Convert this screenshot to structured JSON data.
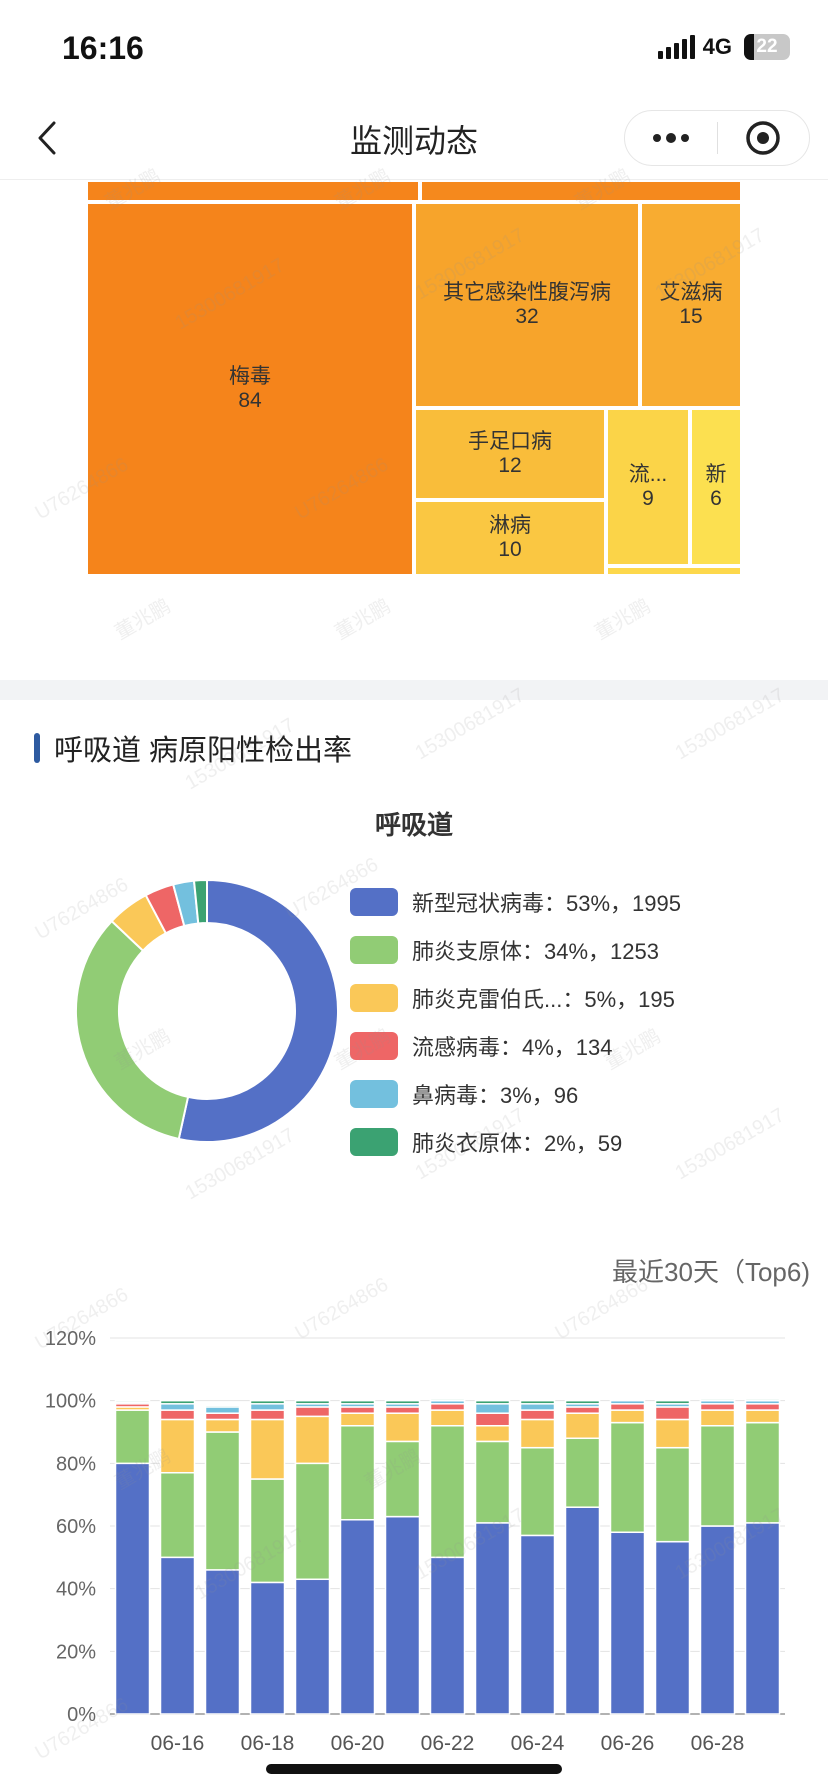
{
  "status_bar": {
    "time": "16:16",
    "network": "4G",
    "battery": "22"
  },
  "nav": {
    "title": "监测动态",
    "back_icon": "chevron-left-icon",
    "more_icon": "more-dots-icon",
    "target_icon": "record-target-icon"
  },
  "treemap": {
    "cells": [
      {
        "key": "top_left",
        "label": "",
        "value": "",
        "color": "#f5841b"
      },
      {
        "key": "top_right",
        "label": "",
        "value": "",
        "color": "#f5891d"
      },
      {
        "key": "syphilis",
        "label": "梅毒",
        "value": "84",
        "color": "#f5841b"
      },
      {
        "key": "diarrhea",
        "label": "其它感染性腹泻病",
        "value": "32",
        "color": "#f7a42b"
      },
      {
        "key": "aids",
        "label": "艾滋病",
        "value": "15",
        "color": "#f8ac31"
      },
      {
        "key": "hfmd",
        "label": "手足口病",
        "value": "12",
        "color": "#f9bd3a"
      },
      {
        "key": "gonorrhea",
        "label": "淋病",
        "value": "10",
        "color": "#fac742"
      },
      {
        "key": "flu",
        "label": "流...",
        "value": "9",
        "color": "#fbd448"
      },
      {
        "key": "new",
        "label": "新",
        "value": "6",
        "color": "#fce050"
      },
      {
        "key": "tiny",
        "label": "",
        "value": "",
        "color": "#fdd84c"
      }
    ]
  },
  "respiratory": {
    "section_title": "呼吸道 病原阳性检出率",
    "donut_title": "呼吸道",
    "legend": [
      {
        "label": "新型冠状病毒：53%，1995",
        "percent": 53,
        "count": 1995,
        "color": "#5470c6"
      },
      {
        "label": "肺炎支原体：34%，1253",
        "percent": 34,
        "count": 1253,
        "color": "#91cc75"
      },
      {
        "label": "肺炎克雷伯氏...：5%，195",
        "percent": 5,
        "count": 195,
        "color": "#fac858"
      },
      {
        "label": "流感病毒：4%，134",
        "percent": 4,
        "count": 134,
        "color": "#ee6666"
      },
      {
        "label": "鼻病毒：3%，96",
        "percent": 3,
        "count": 96,
        "color": "#73c0de"
      },
      {
        "label": "肺炎衣原体：2%，59",
        "percent": 2,
        "count": 59,
        "color": "#3ba272"
      }
    ]
  },
  "period_label": "最近30天（Top6)",
  "chart_data": {
    "type": "bar",
    "stacked": true,
    "ylim": [
      0,
      120
    ],
    "yticks": [
      "0%",
      "20%",
      "40%",
      "60%",
      "80%",
      "100%",
      "120%"
    ],
    "xtick_labels": [
      "06-16",
      "06-18",
      "06-20",
      "06-22",
      "06-24",
      "06-26",
      "06-28"
    ],
    "categories": [
      "06-15",
      "06-16",
      "06-17",
      "06-18",
      "06-19",
      "06-20",
      "06-21",
      "06-22",
      "06-23",
      "06-24",
      "06-25",
      "06-26",
      "06-27",
      "06-28",
      "06-29"
    ],
    "series": [
      {
        "color": "#5470c6",
        "values": [
          80,
          50,
          46,
          42,
          43,
          62,
          63,
          50,
          61,
          57,
          66,
          58,
          55,
          60,
          61
        ]
      },
      {
        "color": "#91cc75",
        "values": [
          17,
          27,
          44,
          33,
          37,
          30,
          24,
          42,
          26,
          28,
          22,
          35,
          30,
          32,
          32
        ]
      },
      {
        "color": "#fac858",
        "values": [
          1,
          17,
          4,
          19,
          15,
          4,
          9,
          5,
          5,
          9,
          8,
          4,
          9,
          5,
          4
        ]
      },
      {
        "color": "#ee6666",
        "values": [
          1,
          3,
          2,
          3,
          3,
          2,
          2,
          2,
          4,
          3,
          2,
          2,
          4,
          2,
          2
        ]
      },
      {
        "color": "#73c0de",
        "values": [
          0.5,
          2,
          2,
          2,
          1,
          1,
          1,
          1,
          3,
          2,
          1,
          1,
          1,
          1,
          1
        ]
      },
      {
        "color": "#3ba272",
        "values": [
          0.5,
          1,
          0.5,
          1,
          1,
          1,
          1,
          0.5,
          1,
          1,
          1,
          0,
          1,
          0.5,
          0.5
        ]
      }
    ]
  },
  "watermarks": [
    "董兆鹏",
    "15300681917",
    "U76264866"
  ]
}
